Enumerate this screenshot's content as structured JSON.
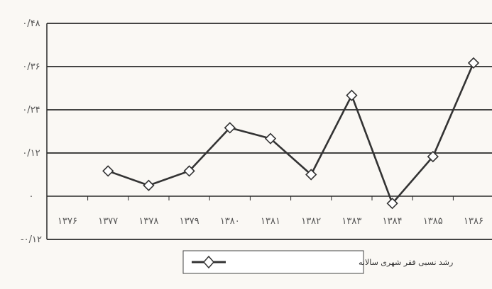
{
  "chart_data": {
    "type": "line",
    "title": "",
    "xlabel": "",
    "ylabel": "",
    "categories": [
      "۱۳۷۶",
      "۱۳۷۷",
      "۱۳۷۸",
      "۱۳۷۹",
      "۱۳۸۰",
      "۱۳۸۱",
      "۱۳۸۲",
      "۱۳۸۳",
      "۱۳۸۴",
      "۱۳۸۵",
      "۱۳۸۶"
    ],
    "y_ticks": [
      "-۰/۱۲",
      "۰",
      "۰/۱۲",
      "۰/۲۴",
      "۰/۳۶",
      "۰/۴۸"
    ],
    "ylim": [
      -0.12,
      0.48
    ],
    "grid": true,
    "legend": {
      "position": "bottom-center"
    },
    "series": [
      {
        "name": "رشد نسبی فقر شهری سالانه",
        "color": "#333333",
        "marker": "diamond",
        "values": [
          null,
          0.07,
          0.03,
          0.07,
          0.19,
          0.16,
          0.06,
          0.28,
          -0.02,
          0.11,
          0.37
        ]
      }
    ]
  }
}
